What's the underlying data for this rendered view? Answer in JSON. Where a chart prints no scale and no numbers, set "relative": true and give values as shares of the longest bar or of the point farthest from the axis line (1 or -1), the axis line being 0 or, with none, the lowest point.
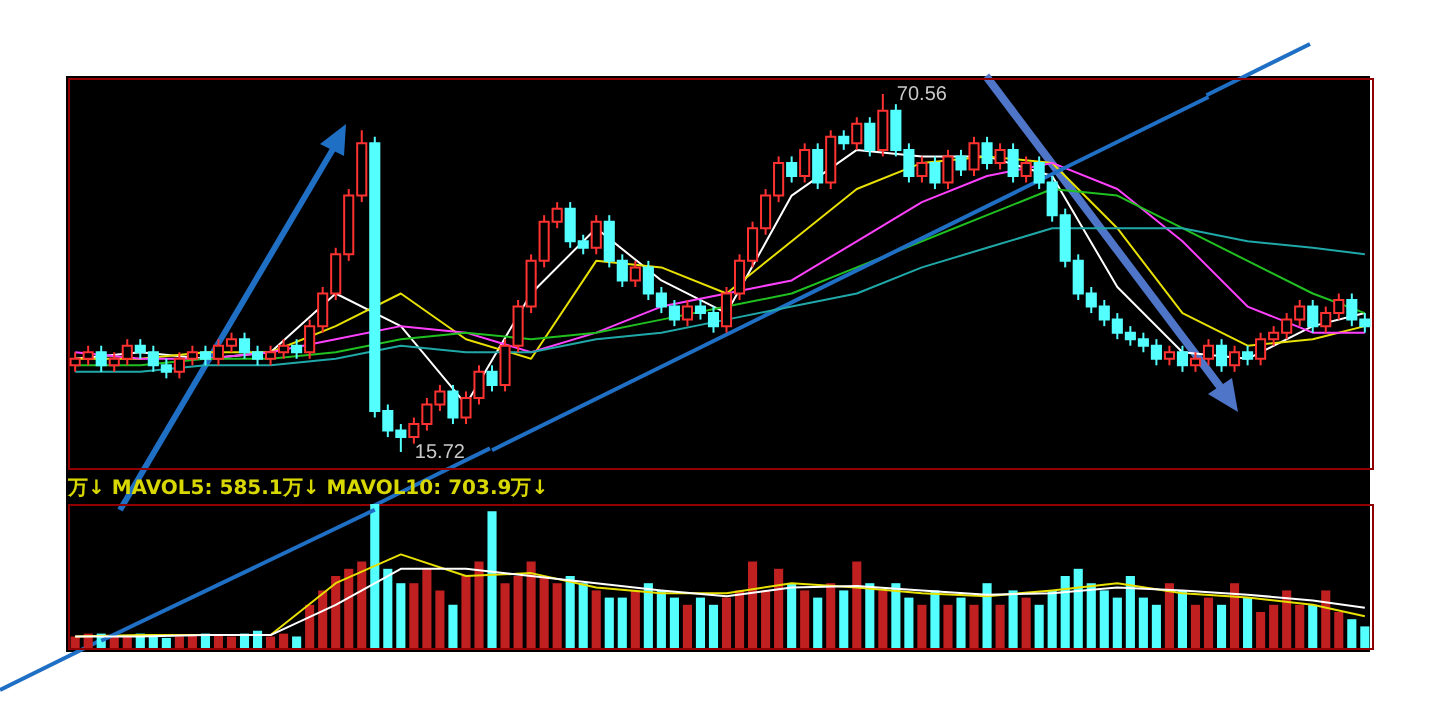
{
  "chart_data": [
    {
      "type": "candlestick",
      "categories": [
        null,
        null,
        null,
        null,
        null,
        null,
        null,
        null,
        null,
        null,
        null,
        null,
        null,
        null,
        null,
        null,
        null,
        null,
        null,
        null,
        null,
        null,
        null,
        null,
        null,
        null,
        null,
        null,
        null,
        null,
        null,
        null,
        null,
        null,
        null,
        null,
        null,
        null,
        null,
        null,
        null,
        null,
        null,
        null,
        null,
        null,
        null,
        null,
        null,
        null,
        null,
        null,
        null,
        null,
        null,
        null,
        null,
        null,
        null,
        null,
        null,
        null,
        null,
        null,
        null,
        null,
        null,
        null,
        null,
        null,
        null,
        null,
        null,
        null,
        null,
        null,
        null,
        null,
        null,
        null,
        null,
        null,
        null,
        null,
        null,
        null,
        null,
        null,
        null,
        null,
        null,
        null,
        null,
        null,
        null,
        null,
        null,
        null,
        null,
        null
      ],
      "ohlc": [
        [
          29,
          31,
          28,
          30
        ],
        [
          30,
          32,
          29,
          31
        ],
        [
          31,
          32,
          28,
          29
        ],
        [
          29,
          31,
          28,
          30
        ],
        [
          30,
          33,
          29,
          32
        ],
        [
          32,
          33,
          30,
          31
        ],
        [
          31,
          32,
          28,
          29
        ],
        [
          29,
          30,
          27,
          28
        ],
        [
          28,
          31,
          27,
          30
        ],
        [
          30,
          32,
          29,
          31
        ],
        [
          31,
          32,
          29,
          30
        ],
        [
          30,
          33,
          29,
          32
        ],
        [
          32,
          34,
          31,
          33
        ],
        [
          33,
          34,
          30,
          31
        ],
        [
          31,
          32,
          29,
          30
        ],
        [
          30,
          32,
          29,
          31
        ],
        [
          31,
          33,
          30,
          32
        ],
        [
          32,
          33,
          30,
          31
        ],
        [
          31,
          36,
          30,
          35
        ],
        [
          35,
          41,
          34,
          40
        ],
        [
          40,
          47,
          39,
          46
        ],
        [
          46,
          56,
          45,
          55
        ],
        [
          55,
          65,
          54,
          63
        ],
        [
          63,
          64,
          21,
          22
        ],
        [
          22,
          23,
          18,
          19
        ],
        [
          19,
          20,
          15.72,
          18
        ],
        [
          18,
          21,
          17,
          20
        ],
        [
          20,
          24,
          19,
          23
        ],
        [
          23,
          26,
          22,
          25
        ],
        [
          25,
          26,
          20,
          21
        ],
        [
          21,
          25,
          20,
          24
        ],
        [
          24,
          29,
          23,
          28
        ],
        [
          28,
          29,
          25,
          26
        ],
        [
          26,
          33,
          25,
          32
        ],
        [
          32,
          39,
          31,
          38
        ],
        [
          38,
          46,
          37,
          45
        ],
        [
          45,
          52,
          44,
          51
        ],
        [
          51,
          54,
          50,
          53
        ],
        [
          53,
          54,
          47,
          48
        ],
        [
          48,
          49,
          46,
          47
        ],
        [
          47,
          52,
          46,
          51
        ],
        [
          51,
          52,
          44,
          45
        ],
        [
          45,
          46,
          41,
          42
        ],
        [
          42,
          45,
          41,
          44
        ],
        [
          44,
          45,
          39,
          40
        ],
        [
          40,
          41,
          37,
          38
        ],
        [
          38,
          39,
          35,
          36
        ],
        [
          36,
          39,
          35,
          38
        ],
        [
          38,
          39,
          36,
          37
        ],
        [
          37,
          38,
          34,
          35
        ],
        [
          35,
          41,
          34,
          40
        ],
        [
          40,
          46,
          39,
          45
        ],
        [
          45,
          51,
          44,
          50
        ],
        [
          50,
          56,
          49,
          55
        ],
        [
          55,
          61,
          54,
          60
        ],
        [
          60,
          61,
          57,
          58
        ],
        [
          58,
          63,
          57,
          62
        ],
        [
          62,
          63,
          56,
          57
        ],
        [
          57,
          65,
          56,
          64
        ],
        [
          64,
          65,
          62,
          63
        ],
        [
          63,
          67,
          62,
          66
        ],
        [
          66,
          67,
          61,
          62
        ],
        [
          62,
          70.56,
          61,
          68
        ],
        [
          68,
          69,
          61,
          62
        ],
        [
          62,
          63,
          57,
          58
        ],
        [
          58,
          61,
          57,
          60
        ],
        [
          60,
          61,
          56,
          57
        ],
        [
          57,
          62,
          56,
          61
        ],
        [
          61,
          62,
          58,
          59
        ],
        [
          59,
          64,
          58,
          63
        ],
        [
          63,
          64,
          59,
          60
        ],
        [
          60,
          63,
          59,
          62
        ],
        [
          62,
          63,
          57,
          58
        ],
        [
          58,
          61,
          57,
          60
        ],
        [
          60,
          61,
          56,
          57
        ],
        [
          57,
          58,
          51,
          52
        ],
        [
          52,
          53,
          44,
          45
        ],
        [
          45,
          46,
          39,
          40
        ],
        [
          40,
          41,
          37,
          38
        ],
        [
          38,
          39,
          35,
          36
        ],
        [
          36,
          37,
          33,
          34
        ],
        [
          34,
          35,
          32,
          33
        ],
        [
          33,
          34,
          31,
          32
        ],
        [
          32,
          33,
          29,
          30
        ],
        [
          30,
          32,
          29,
          31
        ],
        [
          31,
          32,
          28,
          29
        ],
        [
          29,
          31,
          28,
          30
        ],
        [
          30,
          33,
          29,
          32
        ],
        [
          32,
          33,
          28,
          29
        ],
        [
          29,
          32,
          28,
          31
        ],
        [
          31,
          32,
          29,
          30
        ],
        [
          30,
          34,
          29,
          33
        ],
        [
          33,
          35,
          32,
          34
        ],
        [
          34,
          37,
          33,
          36
        ],
        [
          36,
          39,
          35,
          38
        ],
        [
          38,
          39,
          34,
          35
        ],
        [
          35,
          38,
          34,
          37
        ],
        [
          37,
          40,
          36,
          39
        ],
        [
          39,
          40,
          35,
          36
        ],
        [
          36,
          37,
          34,
          35
        ]
      ],
      "series": [
        {
          "type": "line",
          "color": "#ffffff",
          "values": [
            30,
            null,
            null,
            null,
            null,
            31,
            null,
            null,
            null,
            null,
            30,
            null,
            null,
            null,
            null,
            31,
            null,
            null,
            null,
            null,
            40,
            null,
            null,
            null,
            null,
            35,
            null,
            null,
            null,
            null,
            23,
            null,
            null,
            null,
            null,
            40,
            null,
            null,
            null,
            null,
            50,
            null,
            null,
            null,
            null,
            42,
            null,
            null,
            null,
            null,
            37,
            null,
            null,
            null,
            null,
            55,
            null,
            null,
            null,
            null,
            62,
            null,
            null,
            null,
            null,
            61,
            null,
            null,
            null,
            null,
            61,
            null,
            null,
            null,
            null,
            58,
            null,
            null,
            null,
            null,
            41,
            null,
            null,
            null,
            null,
            31,
            null,
            null,
            null,
            null,
            30,
            null,
            null,
            null,
            null,
            35,
            null,
            null,
            null,
            37
          ]
        },
        {
          "type": "line",
          "color": "#e8e000",
          "values": [
            30,
            null,
            null,
            null,
            null,
            30,
            null,
            null,
            null,
            null,
            31,
            null,
            null,
            null,
            null,
            31,
            null,
            null,
            null,
            null,
            35,
            null,
            null,
            null,
            null,
            40,
            null,
            null,
            null,
            null,
            33,
            null,
            null,
            null,
            null,
            30,
            null,
            null,
            null,
            null,
            45,
            null,
            null,
            null,
            null,
            44,
            null,
            null,
            null,
            null,
            40,
            null,
            null,
            null,
            null,
            48,
            null,
            null,
            null,
            null,
            56,
            null,
            null,
            null,
            null,
            60,
            null,
            null,
            null,
            null,
            61,
            null,
            null,
            null,
            null,
            60,
            null,
            null,
            null,
            null,
            50,
            null,
            null,
            null,
            null,
            37,
            null,
            null,
            null,
            null,
            32,
            null,
            null,
            null,
            null,
            33,
            null,
            null,
            null,
            35
          ]
        },
        {
          "type": "line",
          "color": "#ff40ff",
          "values": [
            31,
            null,
            null,
            null,
            null,
            30,
            null,
            null,
            null,
            null,
            30,
            null,
            null,
            null,
            null,
            31,
            null,
            null,
            null,
            null,
            33,
            null,
            null,
            null,
            null,
            35,
            null,
            null,
            null,
            null,
            34,
            null,
            null,
            null,
            null,
            31,
            null,
            null,
            null,
            null,
            34,
            null,
            null,
            null,
            null,
            38,
            null,
            null,
            null,
            null,
            40,
            null,
            null,
            null,
            null,
            42,
            null,
            null,
            null,
            null,
            48,
            null,
            null,
            null,
            null,
            54,
            null,
            null,
            null,
            null,
            58,
            null,
            null,
            null,
            null,
            60,
            null,
            null,
            null,
            null,
            56,
            null,
            null,
            null,
            null,
            48,
            null,
            null,
            null,
            null,
            38,
            null,
            null,
            null,
            null,
            34,
            null,
            null,
            null,
            34
          ]
        },
        {
          "type": "line",
          "color": "#20c020",
          "values": [
            29,
            null,
            null,
            null,
            null,
            29,
            null,
            null,
            null,
            null,
            30,
            null,
            null,
            null,
            null,
            30,
            null,
            null,
            null,
            null,
            31,
            null,
            null,
            null,
            null,
            33,
            null,
            null,
            null,
            null,
            34,
            null,
            null,
            null,
            null,
            33,
            null,
            null,
            null,
            null,
            34,
            null,
            null,
            null,
            null,
            36,
            null,
            null,
            null,
            null,
            38,
            null,
            null,
            null,
            null,
            40,
            null,
            null,
            null,
            null,
            44,
            null,
            null,
            null,
            null,
            48,
            null,
            null,
            null,
            null,
            52,
            null,
            null,
            null,
            null,
            56,
            null,
            null,
            null,
            null,
            55,
            null,
            null,
            null,
            null,
            50,
            null,
            null,
            null,
            null,
            45,
            null,
            null,
            null,
            null,
            40,
            null,
            null,
            null,
            37
          ]
        },
        {
          "type": "line",
          "color": "#1f6fc4",
          "values": [
            null,
            null,
            null,
            null,
            null,
            null,
            null,
            null,
            null,
            null,
            null,
            null,
            null,
            null,
            null,
            null,
            null,
            null,
            null,
            null,
            null,
            null,
            null,
            null,
            null,
            null,
            null,
            null,
            null,
            null,
            null,
            null,
            16,
            null,
            null,
            null,
            null,
            null,
            null,
            null,
            null,
            null,
            null,
            null,
            null,
            null,
            null,
            null,
            null,
            null,
            null,
            null,
            null,
            null,
            null,
            null,
            null,
            null,
            null,
            null,
            null,
            null,
            null,
            null,
            null,
            null,
            null,
            null,
            null,
            null,
            null,
            null,
            null,
            null,
            null,
            null,
            null,
            null,
            null,
            null,
            null,
            null,
            null,
            null,
            null,
            null,
            null,
            70.1,
            null,
            null,
            null,
            null,
            null,
            null,
            null,
            null,
            null,
            null,
            null,
            null
          ]
        },
        {
          "type": "line",
          "color": "#20a8a8",
          "values": [
            28,
            null,
            null,
            null,
            null,
            28,
            null,
            null,
            null,
            null,
            29,
            null,
            null,
            null,
            null,
            29,
            null,
            null,
            null,
            null,
            30,
            null,
            null,
            null,
            null,
            32,
            null,
            null,
            null,
            null,
            31,
            null,
            null,
            null,
            null,
            31,
            null,
            null,
            null,
            null,
            33,
            null,
            null,
            null,
            null,
            34,
            null,
            null,
            null,
            null,
            36,
            null,
            null,
            null,
            null,
            38,
            null,
            null,
            null,
            null,
            40,
            null,
            null,
            null,
            null,
            44,
            null,
            null,
            null,
            null,
            47,
            null,
            null,
            null,
            null,
            50,
            null,
            null,
            null,
            null,
            50,
            null,
            null,
            null,
            null,
            50,
            null,
            null,
            null,
            null,
            48,
            null,
            null,
            null,
            null,
            47,
            null,
            null,
            null,
            46
          ]
        }
      ],
      "annotations": [
        "70.56",
        "15.72"
      ]
    },
    {
      "type": "bar",
      "relative": true,
      "title": "万↓ MAVOL5: 585.1万↓ MAVOL10: 703.9万↓",
      "categories": [
        null,
        null,
        null,
        null,
        null,
        null,
        null,
        null,
        null,
        null,
        null,
        null,
        null,
        null,
        null,
        null,
        null,
        null,
        null,
        null,
        null,
        null,
        null,
        null,
        null,
        null,
        null,
        null,
        null,
        null,
        null,
        null,
        null,
        null,
        null,
        null,
        null,
        null,
        null,
        null,
        null,
        null,
        null,
        null,
        null,
        null,
        null,
        null,
        null,
        null,
        null,
        null,
        null,
        null,
        null,
        null,
        null,
        null,
        null,
        null,
        null,
        null,
        null,
        null,
        null,
        null,
        null,
        null,
        null,
        null,
        null,
        null,
        null,
        null,
        null,
        null,
        null,
        null,
        null,
        null,
        null,
        null,
        null,
        null,
        null,
        null,
        null,
        null,
        null,
        null,
        null,
        null,
        null,
        null,
        null,
        null,
        null,
        null,
        null,
        null
      ],
      "values": [
        0.08,
        0.1,
        0.1,
        0.08,
        0.09,
        0.1,
        0.08,
        0.07,
        0.08,
        0.09,
        0.1,
        0.09,
        0.08,
        0.1,
        0.12,
        0.08,
        0.1,
        0.08,
        0.3,
        0.4,
        0.5,
        0.55,
        0.6,
        1,
        0.55,
        0.45,
        0.45,
        0.55,
        0.4,
        0.3,
        0.5,
        0.6,
        0.95,
        0.45,
        0.5,
        0.6,
        0.5,
        0.45,
        0.5,
        0.45,
        0.4,
        0.35,
        0.35,
        0.4,
        0.45,
        0.4,
        0.35,
        0.3,
        0.35,
        0.3,
        0.35,
        0.4,
        0.6,
        0.4,
        0.55,
        0.45,
        0.4,
        0.35,
        0.45,
        0.4,
        0.6,
        0.45,
        0.4,
        0.45,
        0.35,
        0.3,
        0.4,
        0.3,
        0.35,
        0.3,
        0.45,
        0.3,
        0.4,
        0.35,
        0.3,
        0.4,
        0.5,
        0.55,
        0.45,
        0.4,
        0.35,
        0.5,
        0.35,
        0.3,
        0.45,
        0.4,
        0.3,
        0.35,
        0.3,
        0.45,
        0.35,
        0.25,
        0.3,
        0.4,
        0.3,
        0.3,
        0.4,
        0.25,
        0.2,
        0.15
      ],
      "colors": [
        "#c02020",
        "#c02020",
        "#54ffff",
        "#c02020",
        "#c02020",
        "#54ffff",
        "#54ffff",
        "#54ffff",
        "#c02020",
        "#c02020",
        "#54ffff",
        "#c02020",
        "#c02020",
        "#54ffff",
        "#54ffff",
        "#c02020",
        "#c02020",
        "#54ffff",
        "#c02020",
        "#c02020",
        "#c02020",
        "#c02020",
        "#c02020",
        "#54ffff",
        "#54ffff",
        "#54ffff",
        "#c02020",
        "#c02020",
        "#c02020",
        "#54ffff",
        "#c02020",
        "#c02020",
        "#54ffff",
        "#c02020",
        "#c02020",
        "#c02020",
        "#c02020",
        "#c02020",
        "#54ffff",
        "#54ffff",
        "#c02020",
        "#54ffff",
        "#54ffff",
        "#c02020",
        "#54ffff",
        "#54ffff",
        "#54ffff",
        "#c02020",
        "#54ffff",
        "#54ffff",
        "#c02020",
        "#c02020",
        "#c02020",
        "#c02020",
        "#c02020",
        "#54ffff",
        "#c02020",
        "#54ffff",
        "#c02020",
        "#54ffff",
        "#c02020",
        "#54ffff",
        "#c02020",
        "#54ffff",
        "#54ffff",
        "#c02020",
        "#54ffff",
        "#c02020",
        "#54ffff",
        "#c02020",
        "#54ffff",
        "#c02020",
        "#54ffff",
        "#c02020",
        "#54ffff",
        "#54ffff",
        "#54ffff",
        "#54ffff",
        "#54ffff",
        "#54ffff",
        "#54ffff",
        "#54ffff",
        "#54ffff",
        "#54ffff",
        "#c02020",
        "#54ffff",
        "#c02020",
        "#c02020",
        "#54ffff",
        "#c02020",
        "#54ffff",
        "#c02020",
        "#c02020",
        "#c02020",
        "#c02020",
        "#54ffff",
        "#c02020",
        "#c02020",
        "#54ffff",
        "#54ffff"
      ],
      "series": [
        {
          "type": "line",
          "color": "#e8e000",
          "values": [
            0.08,
            null,
            null,
            null,
            null,
            0.09,
            null,
            null,
            null,
            null,
            0.09,
            null,
            null,
            null,
            null,
            0.09,
            null,
            null,
            null,
            null,
            0.45,
            null,
            null,
            null,
            null,
            0.65,
            null,
            null,
            null,
            null,
            0.5,
            null,
            null,
            null,
            null,
            0.52,
            null,
            null,
            null,
            null,
            0.42,
            null,
            null,
            null,
            null,
            0.38,
            null,
            null,
            null,
            null,
            0.38,
            null,
            null,
            null,
            null,
            0.45,
            null,
            null,
            null,
            null,
            0.42,
            null,
            null,
            null,
            null,
            0.38,
            null,
            null,
            null,
            null,
            0.36,
            null,
            null,
            null,
            null,
            0.4,
            null,
            null,
            null,
            null,
            0.45,
            null,
            null,
            null,
            null,
            0.38,
            null,
            null,
            null,
            null,
            0.35,
            null,
            null,
            null,
            null,
            0.3,
            null,
            null,
            null,
            0.22
          ]
        },
        {
          "type": "line",
          "color": "#1f6fc4",
          "values": [
            null,
            null,
            0.05,
            null,
            null,
            null,
            null,
            null,
            null,
            null,
            null,
            null,
            null,
            null,
            null,
            null,
            null,
            null,
            null,
            null,
            null,
            null,
            null,
            0.96,
            null,
            null,
            null,
            null,
            null,
            null,
            null,
            null,
            null,
            null,
            null,
            null,
            null,
            null,
            null,
            null,
            null,
            null,
            null,
            null,
            null,
            null,
            null,
            null,
            null,
            null,
            null,
            null,
            null,
            null,
            null,
            null,
            null,
            null,
            null,
            null,
            null,
            null,
            null,
            null,
            null,
            null,
            null,
            null,
            null,
            null,
            null,
            null,
            null,
            null,
            null,
            null,
            null,
            null,
            null,
            null,
            null,
            null,
            null,
            null,
            null,
            null,
            null,
            null,
            null,
            null,
            null,
            null,
            null,
            null,
            null,
            null,
            null,
            null,
            null,
            null
          ]
        },
        {
          "type": "line",
          "color": "#ffffff",
          "values": [
            0.08,
            null,
            null,
            null,
            null,
            0.08,
            null,
            null,
            null,
            null,
            0.09,
            null,
            null,
            null,
            null,
            0.09,
            null,
            null,
            null,
            null,
            0.3,
            null,
            null,
            null,
            null,
            0.55,
            null,
            null,
            null,
            null,
            0.55,
            null,
            null,
            null,
            null,
            0.5,
            null,
            null,
            null,
            null,
            0.45,
            null,
            null,
            null,
            null,
            0.4,
            null,
            null,
            null,
            null,
            0.36,
            null,
            null,
            null,
            null,
            0.42,
            null,
            null,
            null,
            null,
            0.43,
            null,
            null,
            null,
            null,
            0.4,
            null,
            null,
            null,
            null,
            0.37,
            null,
            null,
            null,
            null,
            0.38,
            null,
            null,
            null,
            null,
            0.42,
            null,
            null,
            null,
            null,
            0.4,
            null,
            null,
            null,
            null,
            0.37,
            null,
            null,
            null,
            null,
            0.33,
            null,
            null,
            null,
            0.28
          ]
        }
      ]
    }
  ]
}
